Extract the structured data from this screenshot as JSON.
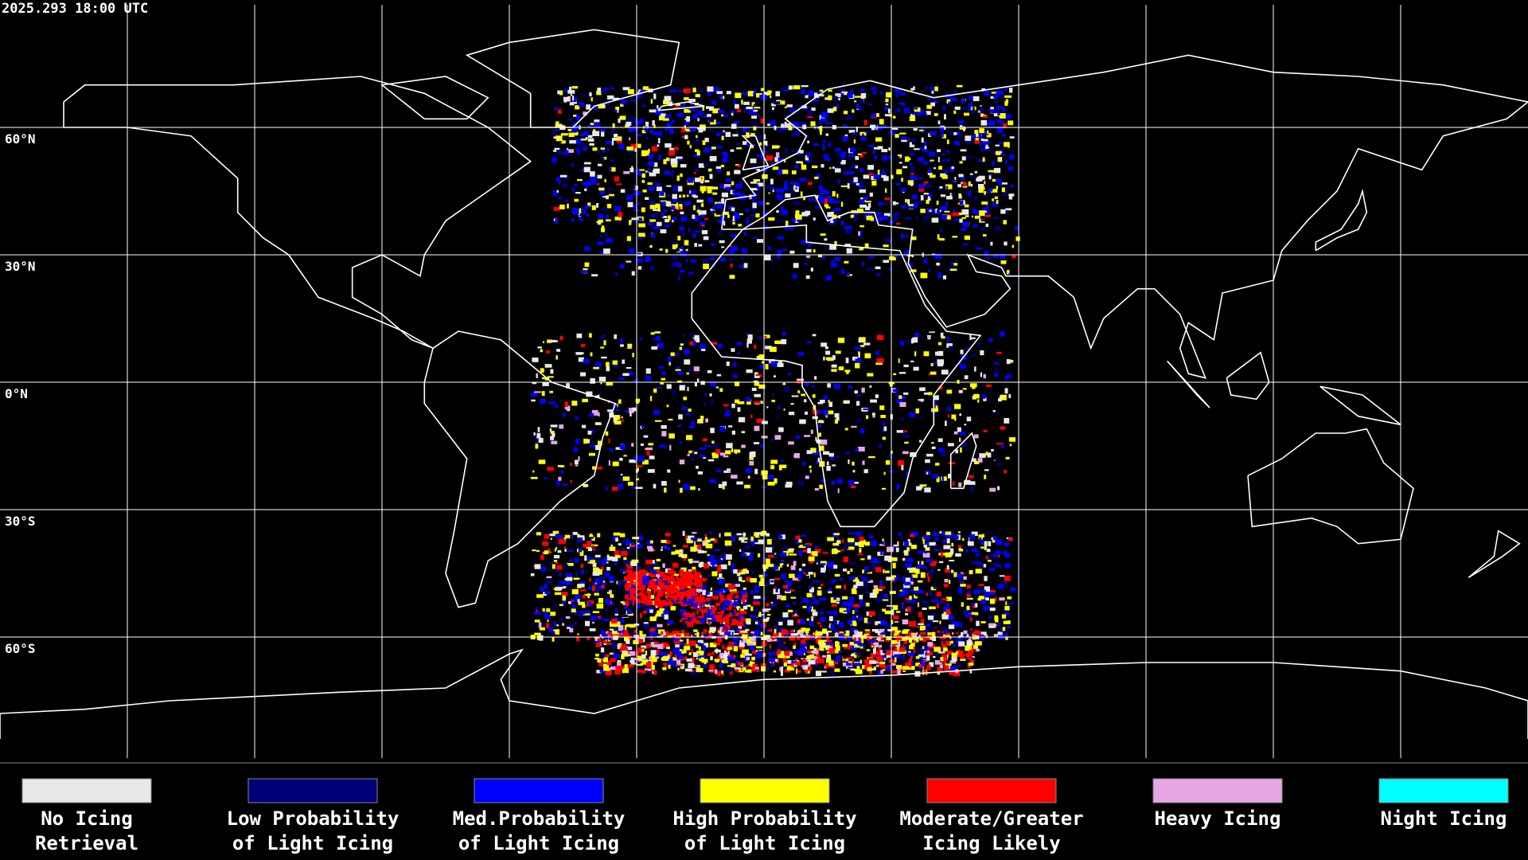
{
  "header": {
    "timestamp": "2025.293 18:00 UTC"
  },
  "map": {
    "latitude_labels": [
      "60°N",
      "30°N",
      "0°N",
      "30°S",
      "60°S"
    ]
  },
  "legend": {
    "items": [
      {
        "label": [
          "No Icing",
          "Retrieval"
        ],
        "color": "#e8e8e8"
      },
      {
        "label": [
          "Low Probability",
          "of Light Icing"
        ],
        "color": "#00007a"
      },
      {
        "label": [
          "Med.Probability",
          "of Light Icing"
        ],
        "color": "#0000ff"
      },
      {
        "label": [
          "High Probability",
          "of Light Icing"
        ],
        "color": "#ffff00"
      },
      {
        "label": [
          "Moderate/Greater",
          "Icing Likely"
        ],
        "color": "#ff0000"
      },
      {
        "label": [
          "Heavy Icing"
        ],
        "color": "#e6a6e6"
      },
      {
        "label": [
          "Night Icing"
        ],
        "color": "#00ffff"
      }
    ]
  }
}
